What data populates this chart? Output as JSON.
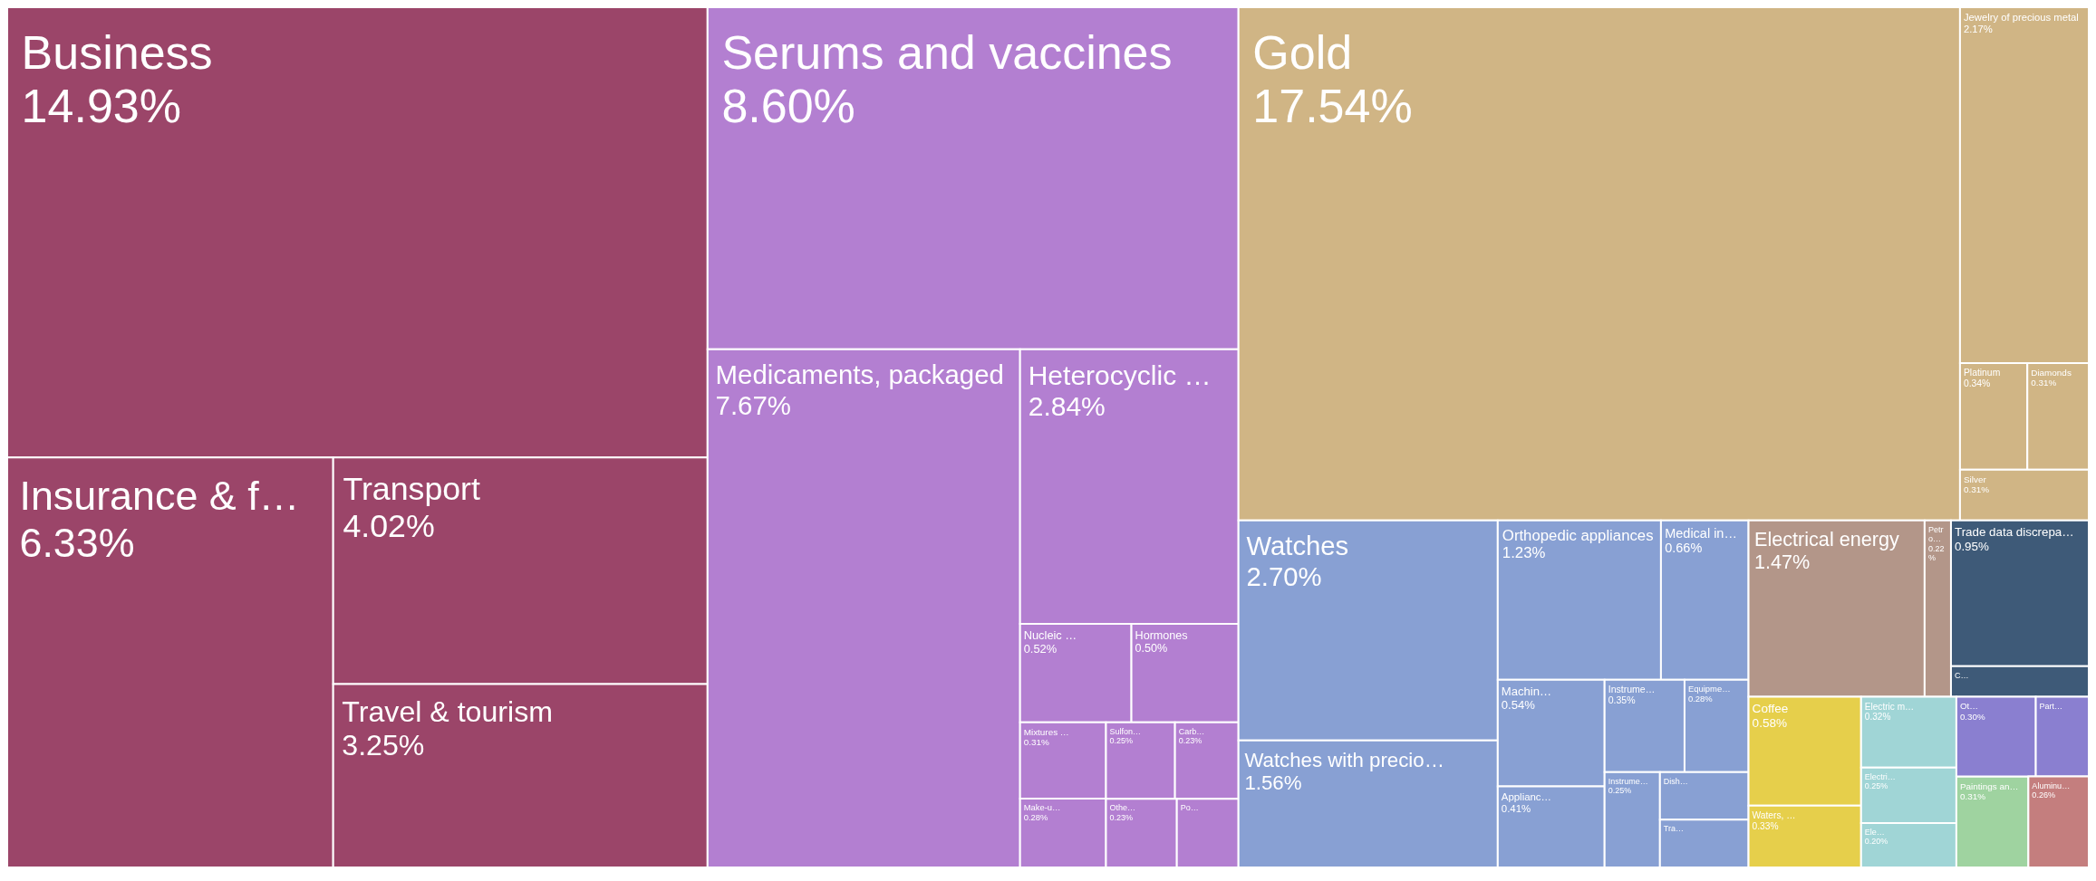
{
  "chart_data": {
    "type": "other",
    "categories": [
      "Business",
      "Insurance & f…",
      "Transport",
      "Travel & tourism",
      "Serums and vaccines",
      "Medicaments, packaged",
      "Heterocyclic …",
      "Nucleic …",
      "Hormones",
      "Mixtures …",
      "Make-u…",
      "Sulfon…",
      "Carb…",
      "Othe…",
      "Po…",
      "Gold",
      "Jewelry of precious metal",
      "Platinum",
      "Diamonds",
      "Silver",
      "Watches",
      "Watches with precio…",
      "Orthopedic appliances",
      "Medical in…",
      "Machin…",
      "Applianc…",
      "Instrume…",
      "Equipme…",
      "Instrume…",
      "Dish…",
      "Tra…",
      "Electrical energy",
      "Petro…",
      "Trade data discrepa…",
      "C…",
      "Coffee",
      "Waters, …",
      "Electric m…",
      "Electri…",
      "Ele…",
      "Paintings an…",
      "Ot…",
      "Part…",
      "Aluminu…"
    ],
    "values": [
      14.93,
      6.33,
      4.02,
      3.25,
      8.6,
      7.67,
      2.84,
      0.52,
      0.5,
      0.31,
      0.28,
      0.25,
      0.23,
      0.23,
      null,
      17.54,
      2.17,
      0.34,
      0.31,
      0.31,
      2.7,
      1.56,
      1.23,
      0.66,
      0.54,
      0.41,
      0.35,
      0.28,
      0.25,
      null,
      null,
      1.47,
      0.22,
      0.95,
      null,
      0.58,
      0.33,
      0.32,
      0.25,
      0.2,
      0.31,
      0.3,
      null,
      0.26
    ],
    "value_labels": [
      "14.93%",
      "6.33%",
      "4.02%",
      "3.25%",
      "8.60%",
      "7.67%",
      "2.84%",
      "0.52%",
      "0.50%",
      "0.31%",
      "0.28%",
      "0.25%",
      "0.23%",
      "0.23%",
      null,
      "17.54%",
      "2.17%",
      "0.34%",
      "0.31%",
      "0.31%",
      "2.70%",
      "1.56%",
      "1.23%",
      "0.66%",
      "0.54%",
      "0.41%",
      "0.35%",
      "0.28%",
      "0.25%",
      null,
      null,
      "1.47%",
      "0.22%",
      "0.95%",
      null,
      "0.58%",
      "0.33%",
      "0.32%",
      "0.25%",
      "0.20%",
      "0.31%",
      "0.30%",
      null,
      "0.26%"
    ],
    "colors": [
      "#9b4569",
      "#9b4569",
      "#9b4569",
      "#9b4569",
      "#b37fd1",
      "#b37fd1",
      "#b37fd1",
      "#b37fd1",
      "#b37fd1",
      "#b37fd1",
      "#b37fd1",
      "#b37fd1",
      "#b37fd1",
      "#b37fd1",
      "#b37fd1",
      "#d0b585",
      "#d0b585",
      "#d0b585",
      "#d0b585",
      "#d0b585",
      "#88a0d3",
      "#88a0d3",
      "#88a0d3",
      "#88a0d3",
      "#88a0d3",
      "#88a0d3",
      "#88a0d3",
      "#88a0d3",
      "#88a0d3",
      "#88a0d3",
      "#88a0d3",
      "#b39689",
      "#b39689",
      "#3e5a78",
      "#3e5a78",
      "#e6cf4b",
      "#e6cf4b",
      "#a0d5d6",
      "#a0d5d6",
      "#a0d5d6",
      "#9fd3a0",
      "#8a7fd0",
      "#8a7fd0",
      "#c47e7e"
    ]
  }
}
